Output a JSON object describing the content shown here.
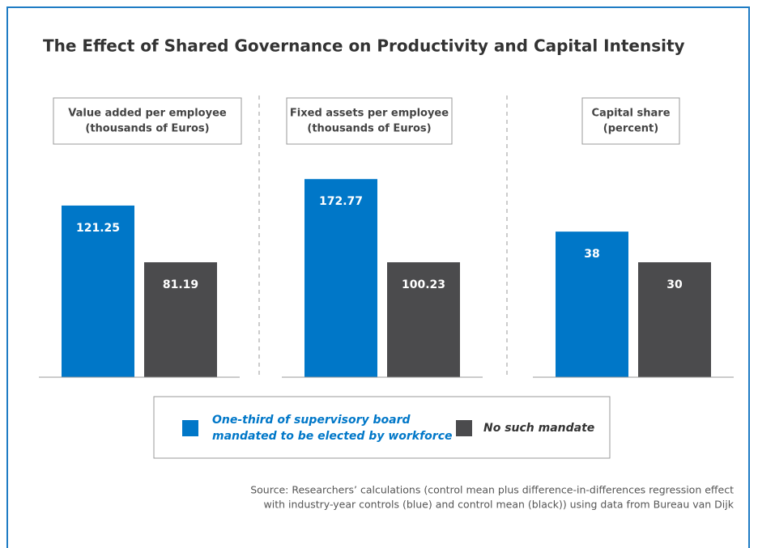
{
  "title": "The Effect of Shared Governance on Productivity and Capital Intensity",
  "legend": [
    {
      "name": [
        "One-third of supervisory board",
        "mandated to be elected by workforce"
      ],
      "color": "#0077c8"
    },
    {
      "name": [
        "No such mandate"
      ],
      "color": "#4b4b4d"
    }
  ],
  "source": [
    "Source: Researchers’ calculations (control mean plus difference-in-differences regression effect",
    "with industry-year controls (blue) and control mean (black)) using data from Bureau van Dijk"
  ],
  "chart_data": [
    {
      "type": "bar",
      "title": [
        "Value added per employee",
        "(thousands of Euros)"
      ],
      "values": [
        121.25,
        81.19
      ]
    },
    {
      "type": "bar",
      "title": [
        "Fixed assets per employee",
        "(thousands of Euros)"
      ],
      "values": [
        172.77,
        100.23
      ]
    },
    {
      "type": "bar",
      "title": [
        "Capital share",
        "(percent)"
      ],
      "values": [
        38,
        30
      ]
    }
  ]
}
